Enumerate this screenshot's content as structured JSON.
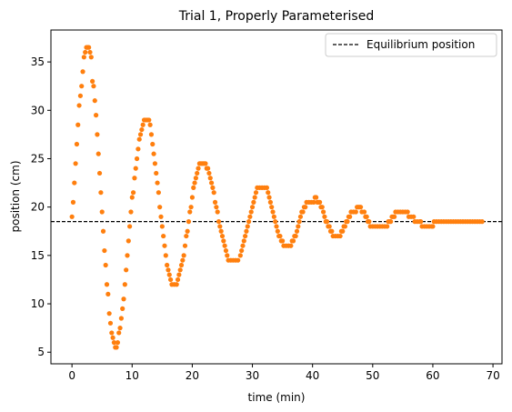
{
  "chart_data": {
    "type": "scatter",
    "title": "Trial 1, Properly Parameterised",
    "xlabel": "time (min)",
    "ylabel": "position (cm)",
    "xlim": [
      -3.5,
      71.5
    ],
    "ylim": [
      3.8,
      38.3
    ],
    "xticks": [
      0,
      10,
      20,
      30,
      40,
      50,
      60,
      70
    ],
    "yticks": [
      5,
      10,
      15,
      20,
      25,
      30,
      35
    ],
    "grid": false,
    "legend": {
      "position": "top-right",
      "entries": [
        "Equilibrium position"
      ]
    },
    "equilibrium": 18.5,
    "marker_color": "#ff7f0e",
    "line_color": "#000000",
    "series": [
      {
        "points": [
          [
            0.0,
            19.0
          ],
          [
            0.2,
            20.5
          ],
          [
            0.4,
            22.5
          ],
          [
            0.6,
            24.5
          ],
          [
            0.8,
            26.5
          ],
          [
            1.0,
            28.5
          ],
          [
            1.2,
            30.5
          ],
          [
            1.4,
            31.5
          ],
          [
            1.6,
            32.5
          ],
          [
            1.8,
            34.0
          ],
          [
            2.0,
            35.5
          ],
          [
            2.2,
            36.0
          ],
          [
            2.4,
            36.5
          ],
          [
            2.6,
            36.5
          ],
          [
            2.8,
            36.5
          ],
          [
            3.0,
            36.0
          ],
          [
            3.2,
            35.5
          ],
          [
            3.4,
            33.0
          ],
          [
            3.6,
            32.5
          ],
          [
            3.8,
            31.0
          ],
          [
            4.0,
            29.5
          ],
          [
            4.2,
            27.5
          ],
          [
            4.4,
            25.5
          ],
          [
            4.6,
            23.5
          ],
          [
            4.8,
            21.5
          ],
          [
            5.0,
            19.5
          ],
          [
            5.2,
            17.5
          ],
          [
            5.4,
            15.5
          ],
          [
            5.6,
            14.0
          ],
          [
            5.8,
            12.0
          ],
          [
            6.0,
            11.0
          ],
          [
            6.2,
            9.0
          ],
          [
            6.4,
            8.0
          ],
          [
            6.6,
            7.0
          ],
          [
            6.8,
            6.5
          ],
          [
            7.0,
            6.0
          ],
          [
            7.2,
            5.5
          ],
          [
            7.4,
            5.5
          ],
          [
            7.6,
            6.0
          ],
          [
            7.8,
            7.0
          ],
          [
            8.0,
            7.5
          ],
          [
            8.2,
            8.5
          ],
          [
            8.4,
            9.5
          ],
          [
            8.6,
            10.5
          ],
          [
            8.8,
            12.0
          ],
          [
            9.0,
            13.5
          ],
          [
            9.2,
            15.0
          ],
          [
            9.4,
            16.5
          ],
          [
            9.6,
            18.0
          ],
          [
            9.8,
            19.5
          ],
          [
            10.0,
            21.0
          ],
          [
            10.2,
            21.5
          ],
          [
            10.4,
            23.0
          ],
          [
            10.6,
            24.0
          ],
          [
            10.8,
            25.0
          ],
          [
            11.0,
            26.0
          ],
          [
            11.2,
            27.0
          ],
          [
            11.4,
            27.5
          ],
          [
            11.6,
            28.0
          ],
          [
            11.8,
            28.5
          ],
          [
            12.0,
            29.0
          ],
          [
            12.2,
            29.0
          ],
          [
            12.4,
            29.0
          ],
          [
            12.6,
            29.0
          ],
          [
            12.8,
            29.0
          ],
          [
            13.0,
            28.5
          ],
          [
            13.2,
            27.5
          ],
          [
            13.4,
            26.5
          ],
          [
            13.6,
            25.5
          ],
          [
            13.8,
            24.5
          ],
          [
            14.0,
            23.5
          ],
          [
            14.2,
            22.5
          ],
          [
            14.4,
            21.5
          ],
          [
            14.6,
            20.0
          ],
          [
            14.8,
            19.0
          ],
          [
            15.0,
            18.0
          ],
          [
            15.2,
            17.0
          ],
          [
            15.4,
            16.0
          ],
          [
            15.6,
            15.0
          ],
          [
            15.8,
            14.0
          ],
          [
            16.0,
            13.5
          ],
          [
            16.2,
            13.0
          ],
          [
            16.4,
            12.5
          ],
          [
            16.6,
            12.0
          ],
          [
            17.0,
            12.0
          ],
          [
            17.4,
            12.0
          ],
          [
            17.6,
            12.5
          ],
          [
            17.8,
            13.0
          ],
          [
            18.0,
            13.5
          ],
          [
            18.2,
            14.0
          ],
          [
            18.4,
            14.5
          ],
          [
            18.6,
            15.0
          ],
          [
            18.8,
            16.0
          ],
          [
            19.0,
            17.0
          ],
          [
            19.2,
            17.5
          ],
          [
            19.4,
            18.5
          ],
          [
            19.6,
            19.5
          ],
          [
            19.8,
            20.0
          ],
          [
            20.0,
            21.0
          ],
          [
            20.2,
            22.0
          ],
          [
            20.4,
            22.5
          ],
          [
            20.6,
            23.0
          ],
          [
            20.8,
            23.5
          ],
          [
            21.0,
            24.0
          ],
          [
            21.2,
            24.5
          ],
          [
            21.4,
            24.5
          ],
          [
            21.6,
            24.5
          ],
          [
            21.8,
            24.5
          ],
          [
            22.0,
            24.5
          ],
          [
            22.2,
            24.5
          ],
          [
            22.4,
            24.0
          ],
          [
            22.6,
            24.0
          ],
          [
            22.8,
            23.5
          ],
          [
            23.0,
            23.0
          ],
          [
            23.2,
            22.5
          ],
          [
            23.4,
            22.0
          ],
          [
            23.6,
            21.5
          ],
          [
            23.8,
            20.5
          ],
          [
            24.0,
            20.0
          ],
          [
            24.2,
            19.5
          ],
          [
            24.4,
            18.5
          ],
          [
            24.6,
            18.0
          ],
          [
            24.8,
            17.5
          ],
          [
            25.0,
            17.0
          ],
          [
            25.2,
            16.5
          ],
          [
            25.4,
            16.0
          ],
          [
            25.6,
            15.5
          ],
          [
            25.8,
            15.0
          ],
          [
            26.0,
            14.5
          ],
          [
            26.4,
            14.5
          ],
          [
            26.8,
            14.5
          ],
          [
            27.2,
            14.5
          ],
          [
            27.6,
            14.5
          ],
          [
            28.0,
            15.0
          ],
          [
            28.2,
            15.5
          ],
          [
            28.4,
            16.0
          ],
          [
            28.6,
            16.5
          ],
          [
            28.8,
            17.0
          ],
          [
            29.0,
            17.5
          ],
          [
            29.2,
            18.0
          ],
          [
            29.4,
            18.5
          ],
          [
            29.6,
            19.0
          ],
          [
            29.8,
            19.5
          ],
          [
            30.0,
            20.0
          ],
          [
            30.2,
            20.5
          ],
          [
            30.4,
            21.0
          ],
          [
            30.6,
            21.5
          ],
          [
            30.8,
            22.0
          ],
          [
            31.2,
            22.0
          ],
          [
            31.6,
            22.0
          ],
          [
            32.0,
            22.0
          ],
          [
            32.4,
            22.0
          ],
          [
            32.6,
            21.5
          ],
          [
            32.8,
            21.0
          ],
          [
            33.0,
            20.5
          ],
          [
            33.2,
            20.0
          ],
          [
            33.4,
            19.5
          ],
          [
            33.6,
            19.0
          ],
          [
            33.8,
            18.5
          ],
          [
            34.0,
            18.0
          ],
          [
            34.2,
            17.5
          ],
          [
            34.4,
            17.0
          ],
          [
            34.6,
            17.0
          ],
          [
            34.8,
            16.5
          ],
          [
            35.0,
            16.5
          ],
          [
            35.2,
            16.0
          ],
          [
            35.6,
            16.0
          ],
          [
            36.0,
            16.0
          ],
          [
            36.4,
            16.0
          ],
          [
            36.6,
            16.5
          ],
          [
            36.8,
            16.5
          ],
          [
            37.0,
            17.0
          ],
          [
            37.2,
            17.0
          ],
          [
            37.4,
            17.5
          ],
          [
            37.6,
            18.0
          ],
          [
            37.8,
            18.5
          ],
          [
            38.0,
            19.0
          ],
          [
            38.2,
            19.5
          ],
          [
            38.4,
            19.5
          ],
          [
            38.6,
            20.0
          ],
          [
            38.8,
            20.0
          ],
          [
            39.0,
            20.5
          ],
          [
            39.4,
            20.5
          ],
          [
            39.8,
            20.5
          ],
          [
            40.2,
            20.5
          ],
          [
            40.4,
            21.0
          ],
          [
            40.6,
            21.0
          ],
          [
            40.8,
            20.5
          ],
          [
            41.0,
            20.5
          ],
          [
            41.2,
            20.5
          ],
          [
            41.4,
            20.0
          ],
          [
            41.6,
            20.0
          ],
          [
            41.8,
            19.5
          ],
          [
            42.0,
            19.0
          ],
          [
            42.2,
            18.5
          ],
          [
            42.4,
            18.5
          ],
          [
            42.6,
            18.0
          ],
          [
            42.8,
            18.0
          ],
          [
            43.0,
            17.5
          ],
          [
            43.2,
            17.5
          ],
          [
            43.4,
            17.0
          ],
          [
            43.8,
            17.0
          ],
          [
            44.2,
            17.0
          ],
          [
            44.6,
            17.0
          ],
          [
            44.8,
            17.5
          ],
          [
            45.0,
            17.5
          ],
          [
            45.2,
            18.0
          ],
          [
            45.4,
            18.0
          ],
          [
            45.6,
            18.5
          ],
          [
            45.8,
            18.5
          ],
          [
            46.0,
            19.0
          ],
          [
            46.2,
            19.0
          ],
          [
            46.4,
            19.5
          ],
          [
            46.8,
            19.5
          ],
          [
            47.2,
            19.5
          ],
          [
            47.4,
            20.0
          ],
          [
            47.6,
            20.0
          ],
          [
            47.8,
            20.0
          ],
          [
            48.0,
            20.0
          ],
          [
            48.2,
            19.5
          ],
          [
            48.6,
            19.5
          ],
          [
            48.8,
            19.0
          ],
          [
            49.0,
            19.0
          ],
          [
            49.2,
            18.5
          ],
          [
            49.4,
            18.5
          ],
          [
            49.6,
            18.0
          ],
          [
            50.0,
            18.0
          ],
          [
            50.4,
            18.0
          ],
          [
            50.8,
            18.0
          ],
          [
            51.2,
            18.0
          ],
          [
            51.6,
            18.0
          ],
          [
            52.0,
            18.0
          ],
          [
            52.4,
            18.0
          ],
          [
            52.6,
            18.5
          ],
          [
            52.8,
            18.5
          ],
          [
            53.0,
            18.5
          ],
          [
            53.2,
            19.0
          ],
          [
            53.4,
            19.0
          ],
          [
            53.6,
            19.0
          ],
          [
            53.8,
            19.5
          ],
          [
            54.2,
            19.5
          ],
          [
            54.6,
            19.5
          ],
          [
            55.0,
            19.5
          ],
          [
            55.4,
            19.5
          ],
          [
            55.8,
            19.5
          ],
          [
            56.0,
            19.0
          ],
          [
            56.4,
            19.0
          ],
          [
            56.8,
            19.0
          ],
          [
            57.0,
            18.5
          ],
          [
            57.4,
            18.5
          ],
          [
            57.8,
            18.5
          ],
          [
            58.0,
            18.5
          ],
          [
            58.2,
            18.0
          ],
          [
            58.6,
            18.0
          ],
          [
            59.0,
            18.0
          ],
          [
            59.4,
            18.0
          ],
          [
            59.8,
            18.0
          ],
          [
            60.0,
            18.0
          ],
          [
            60.2,
            18.5
          ],
          [
            60.6,
            18.5
          ],
          [
            61.0,
            18.5
          ],
          [
            61.4,
            18.5
          ],
          [
            61.8,
            18.5
          ],
          [
            62.2,
            18.5
          ],
          [
            62.6,
            18.5
          ],
          [
            63.0,
            18.5
          ],
          [
            63.4,
            18.5
          ],
          [
            63.8,
            18.5
          ],
          [
            64.2,
            18.5
          ],
          [
            64.6,
            18.5
          ],
          [
            65.0,
            18.5
          ],
          [
            65.4,
            18.5
          ],
          [
            65.8,
            18.5
          ],
          [
            66.2,
            18.5
          ],
          [
            66.6,
            18.5
          ],
          [
            67.0,
            18.5
          ],
          [
            67.4,
            18.5
          ],
          [
            67.8,
            18.5
          ],
          [
            68.2,
            18.5
          ]
        ]
      }
    ]
  }
}
